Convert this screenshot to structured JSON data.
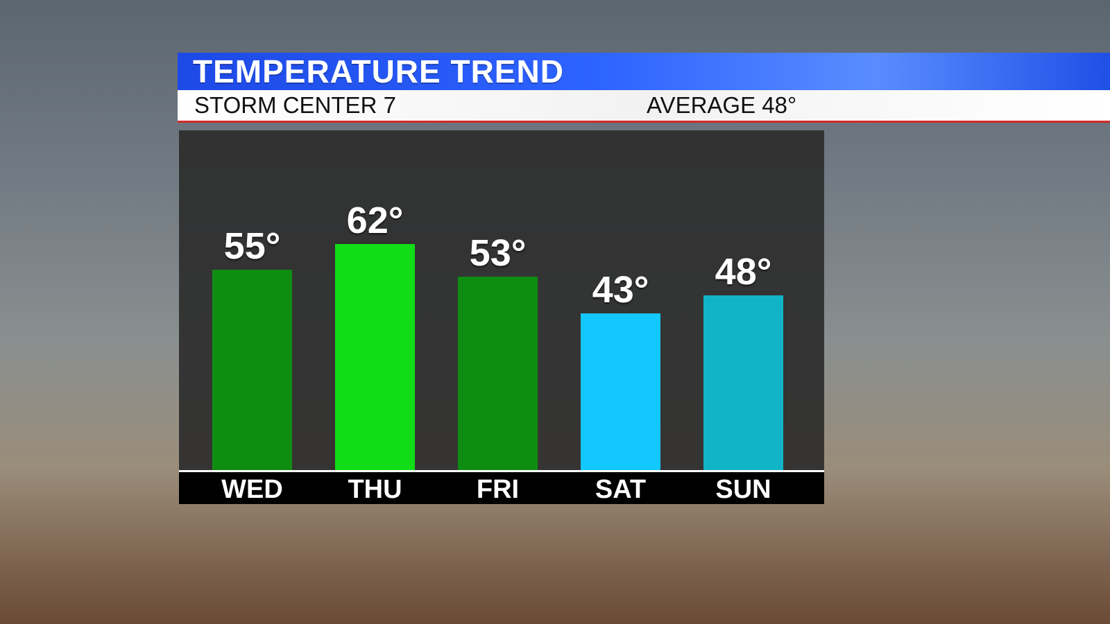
{
  "header": {
    "title": "TEMPERATURE TREND",
    "station": "STORM CENTER 7",
    "average": "AVERAGE 48°"
  },
  "chart_data": {
    "type": "bar",
    "categories": [
      "WED",
      "THU",
      "FRI",
      "SAT",
      "SUN"
    ],
    "values": [
      55,
      62,
      53,
      43,
      48
    ],
    "value_labels": [
      "55°",
      "62°",
      "53°",
      "43°",
      "48°"
    ],
    "bar_colors": [
      "#0f8d12",
      "#10dd16",
      "#0f8d12",
      "#12c8ff",
      "#11b4c6"
    ],
    "title": "TEMPERATURE TREND",
    "xlabel": "",
    "ylabel": "",
    "ylim": [
      0,
      70
    ],
    "grid": false
  },
  "colors": {
    "header_blue": "#2d63ff",
    "panel": "#2d2d2d",
    "accent_red": "#d22a2a"
  }
}
